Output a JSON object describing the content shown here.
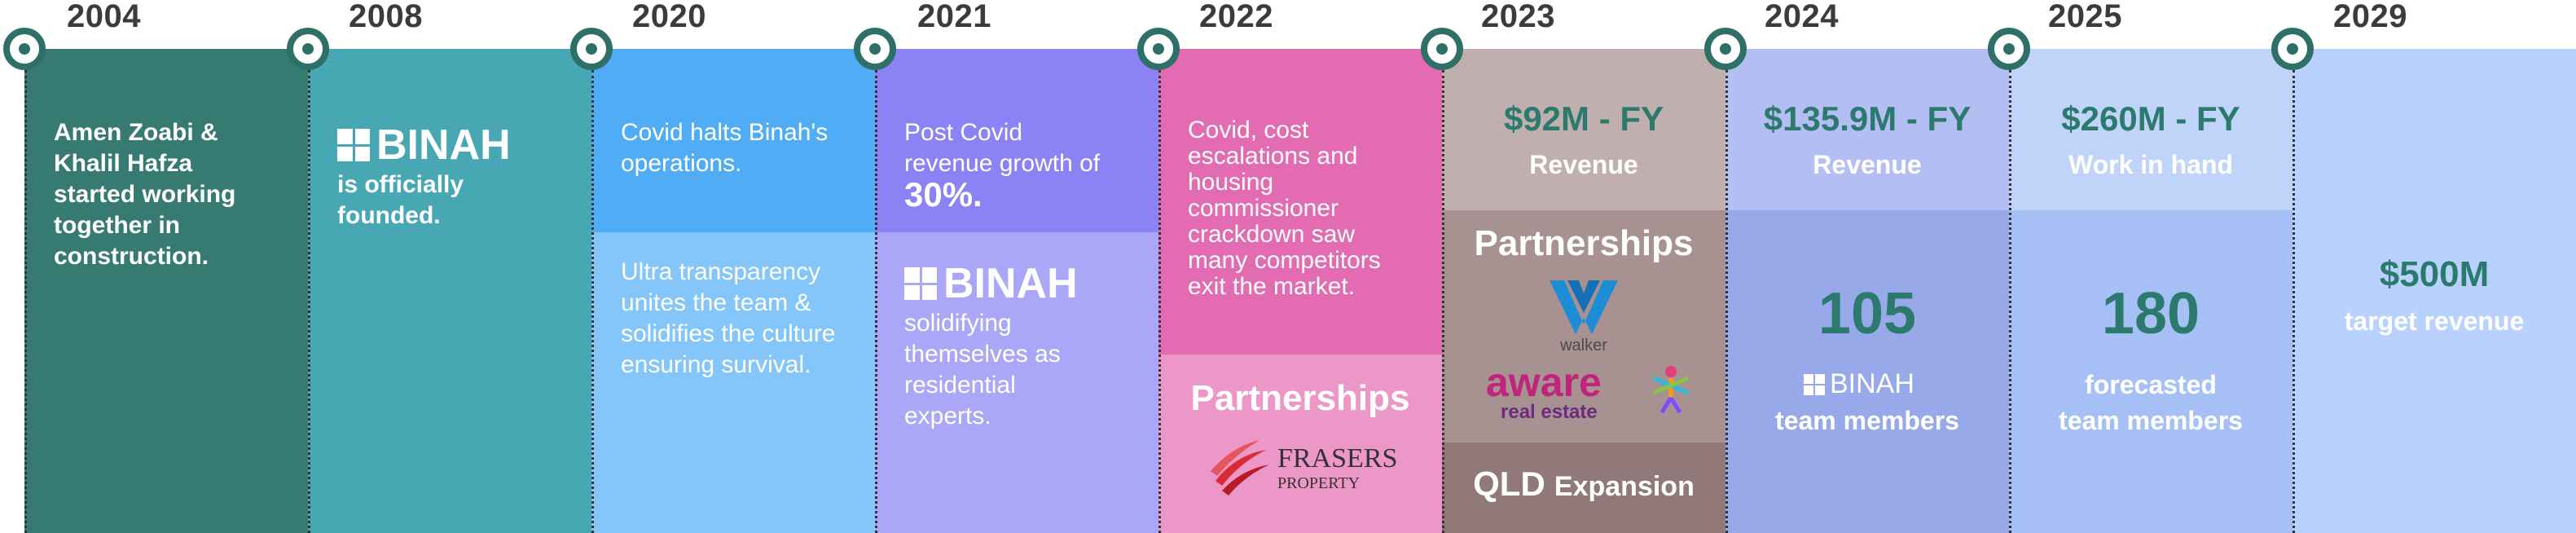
{
  "timeline": [
    {
      "year": "2004",
      "color": "#377a72",
      "texts": [
        "Amen Zoabi & Khalil Hafza started working together in construction."
      ]
    },
    {
      "year": "2008",
      "color": "#47a8b4",
      "logo": "BINAH",
      "texts": [
        "is officially founded."
      ]
    },
    {
      "year": "2020",
      "color_top": "#50adf5",
      "color_bottom": "#84c6fa",
      "texts": [
        "Covid halts Binah's operations.",
        "Ultra transparency unites the team & solidifies the culture ensuring survival."
      ]
    },
    {
      "year": "2021",
      "color_top": "#8a82f5",
      "color_bottom": "#aaa6f8",
      "text_pre": "Post Covid revenue growth of",
      "highlight": "30%.",
      "logo": "BINAH",
      "texts": [
        "solidifying themselves as residential experts."
      ]
    },
    {
      "year": "2022",
      "color_top": "#e36bb1",
      "color_bottom": "#ed97c9",
      "texts": [
        "Covid, cost escalations and housing commissioner crackdown saw many competitors exit the market."
      ],
      "section": "Partnerships",
      "partner": "FRASERS",
      "partner_sub": "PROPERTY"
    },
    {
      "year": "2023",
      "color_top": "#c1aeae",
      "color_mid": "#a89191",
      "color_bottom": "#917979",
      "big": "$92M - FY",
      "label": "Revenue",
      "section": "Partnerships",
      "partner1": "walker",
      "partner2": "aware",
      "partner2_sub": "real estate",
      "expansion_bold": "QLD",
      "expansion": "Expansion"
    },
    {
      "year": "2024",
      "color_top": "#b3bef3",
      "color_bottom": "#98a9ea",
      "big": "$135.9M - FY",
      "label": "Revenue",
      "count": "105",
      "logo": "BINAH",
      "label2": "team members"
    },
    {
      "year": "2025",
      "color_top": "#c0d4fa",
      "color_bottom": "#a6c0f5",
      "big": "$260M - FY",
      "label": "Work in hand",
      "count": "180",
      "label2_line1": "forecasted",
      "label2_line2": "team members"
    },
    {
      "year": "2029",
      "color": "#b8d2fd",
      "big": "$500M",
      "label": "target revenue"
    }
  ],
  "colors": {
    "marker": "#2e6f67",
    "accent_text": "#2c7a6e",
    "year_text": "#3b3b3b"
  }
}
